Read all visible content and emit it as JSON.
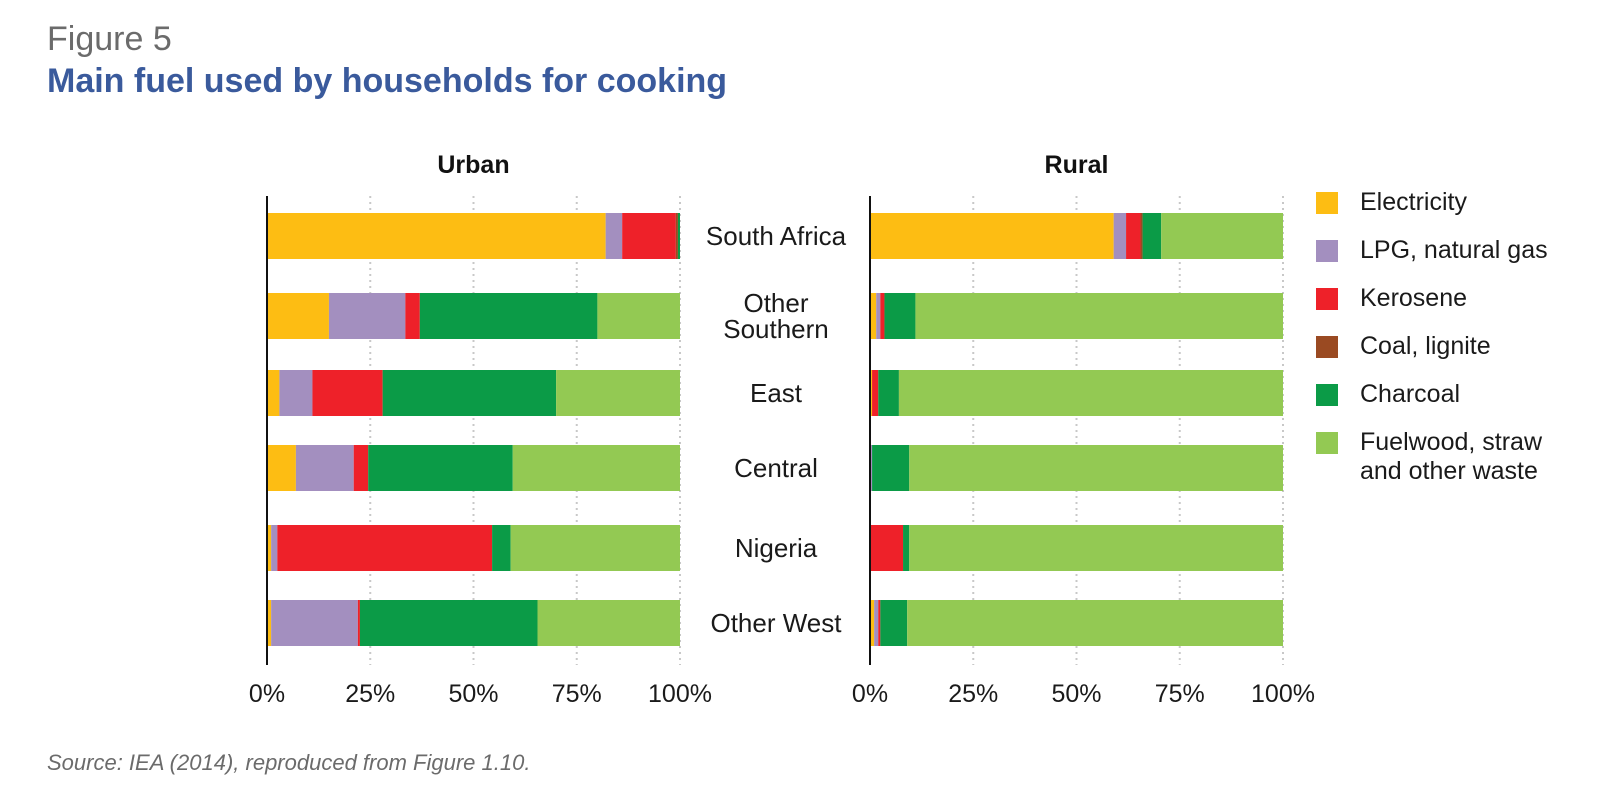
{
  "figure_label": "Figure 5",
  "title": "Main fuel used by households for cooking",
  "source": "Source: IEA (2014), reproduced from Figure 1.10.",
  "chart_data": {
    "type": "bar",
    "orientation": "horizontal",
    "stacked": true,
    "categories": [
      [
        "South Africa"
      ],
      [
        "Other",
        "Southern"
      ],
      [
        "East"
      ],
      [
        "Central"
      ],
      [
        "Nigeria"
      ],
      [
        "Other West"
      ]
    ],
    "xlim": [
      0,
      100
    ],
    "ticks": [
      "0%",
      "25%",
      "50%",
      "75%",
      "100%"
    ],
    "tick_values": [
      0,
      25,
      50,
      75,
      100
    ],
    "grid": "vertical dotted",
    "legend_position": "right",
    "fuels": [
      {
        "name": "Electricity",
        "color": "#fdbd13"
      },
      {
        "name": "LPG, natural gas",
        "color": "#a38fbf"
      },
      {
        "name": "Kerosene",
        "color": "#ee2129"
      },
      {
        "name": "Coal, lignite",
        "color": "#9a4a22"
      },
      {
        "name": "Charcoal",
        "color": "#0b9b47"
      },
      {
        "name": "Fuelwood, straw and other waste",
        "color": "#93c953"
      }
    ],
    "panels": [
      {
        "title": "Urban",
        "values": [
          [
            82,
            4,
            13,
            0.5,
            0.5,
            0
          ],
          [
            15,
            18.5,
            3.5,
            0,
            43,
            20
          ],
          [
            3,
            8,
            17,
            0,
            42,
            30
          ],
          [
            7,
            14,
            3.5,
            0,
            35,
            40.5
          ],
          [
            1,
            1.5,
            52,
            0,
            4.5,
            41
          ],
          [
            1,
            21,
            0.5,
            0,
            43,
            34.5
          ]
        ]
      },
      {
        "title": "Rural",
        "values": [
          [
            59,
            3,
            3.5,
            0.5,
            4.5,
            29.5
          ],
          [
            1.5,
            1,
            1,
            0,
            7.5,
            89
          ],
          [
            0.5,
            0,
            1.5,
            0,
            5,
            93
          ],
          [
            0,
            0.5,
            0,
            0,
            9,
            90.5
          ],
          [
            0,
            0,
            8,
            0,
            1.5,
            90.5
          ],
          [
            1,
            1,
            0.5,
            0,
            6.5,
            91
          ]
        ]
      }
    ]
  }
}
